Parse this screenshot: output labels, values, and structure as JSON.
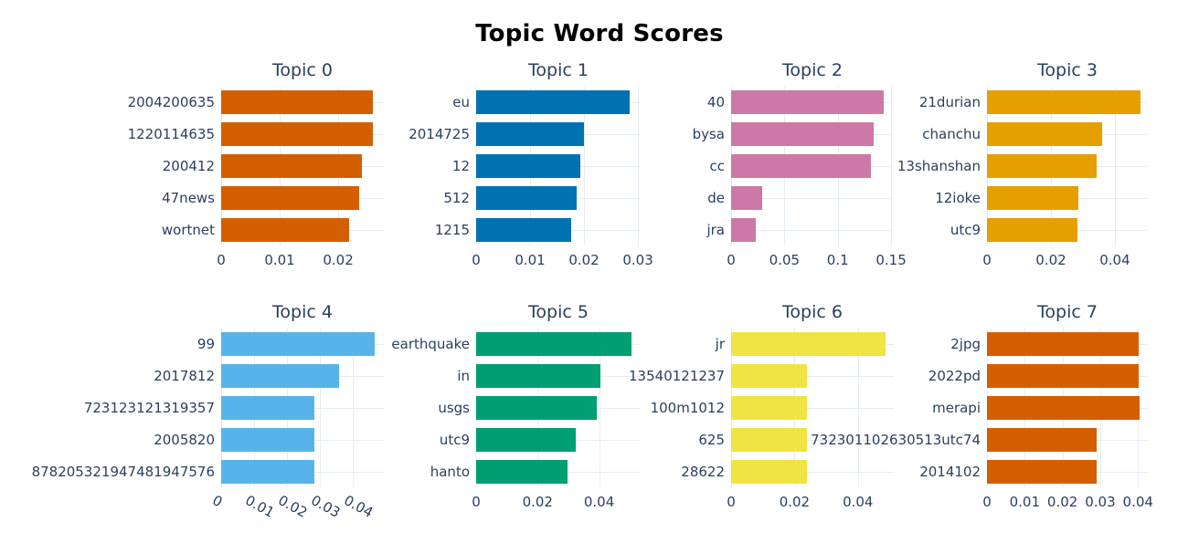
{
  "title": "Topic Word Scores",
  "colors": {
    "background": "#ffffff",
    "text": "#2a3f5f",
    "title_text": "#000000",
    "gridline": "#e6ecf5"
  },
  "chart_data": [
    {
      "type": "bar",
      "orientation": "horizontal",
      "title": "Topic 0",
      "bar_color": "#D55E00",
      "categories": [
        "2004200635",
        "1220114635",
        "200412",
        "47news",
        "wortnet"
      ],
      "values": [
        0.026,
        0.0259,
        0.024,
        0.0236,
        0.0219
      ],
      "xticks": [
        0,
        0.01,
        0.02
      ],
      "xlim": [
        0,
        0.0278
      ],
      "tick_angle": 0,
      "grid": true,
      "row": 0,
      "col": 0
    },
    {
      "type": "bar",
      "orientation": "horizontal",
      "title": "Topic 1",
      "bar_color": "#0072B2",
      "categories": [
        "eu",
        "2014725",
        "12",
        "512",
        "1215"
      ],
      "values": [
        0.0285,
        0.02,
        0.0194,
        0.0187,
        0.0177
      ],
      "xticks": [
        0,
        0.01,
        0.02,
        0.03
      ],
      "xlim": [
        0,
        0.0305
      ],
      "tick_angle": 0,
      "grid": true,
      "row": 0,
      "col": 1
    },
    {
      "type": "bar",
      "orientation": "horizontal",
      "title": "Topic 2",
      "bar_color": "#CC79A7",
      "categories": [
        "40",
        "bysa",
        "cc",
        "de",
        "jra"
      ],
      "values": [
        0.143,
        0.134,
        0.131,
        0.029,
        0.023
      ],
      "xticks": [
        0,
        0.05,
        0.1,
        0.15
      ],
      "xlim": [
        0,
        0.1525
      ],
      "tick_angle": 0,
      "grid": true,
      "row": 0,
      "col": 2
    },
    {
      "type": "bar",
      "orientation": "horizontal",
      "title": "Topic 3",
      "bar_color": "#E69F00",
      "categories": [
        "21durian",
        "chanchu",
        "13shanshan",
        "12ioke",
        "utc9"
      ],
      "values": [
        0.048,
        0.036,
        0.0343,
        0.0286,
        0.0282
      ],
      "xticks": [
        0,
        0.02,
        0.04
      ],
      "xlim": [
        0,
        0.0503
      ],
      "tick_angle": 0,
      "grid": true,
      "row": 0,
      "col": 3
    },
    {
      "type": "bar",
      "orientation": "horizontal",
      "title": "Topic 4",
      "bar_color": "#56B4E9",
      "categories": [
        "99",
        "2017812",
        "723123121319357",
        "2005820",
        "878205321947481947576"
      ],
      "values": [
        0.0468,
        0.036,
        0.0285,
        0.0284,
        0.0284
      ],
      "xticks": [
        0,
        0.01,
        0.02,
        0.03,
        0.04
      ],
      "xlim": [
        0,
        0.0496
      ],
      "tick_angle": 29,
      "grid": true,
      "row": 1,
      "col": 0
    },
    {
      "type": "bar",
      "orientation": "horizontal",
      "title": "Topic 5",
      "bar_color": "#009E73",
      "categories": [
        "earthquake",
        "in",
        "usgs",
        "utc9",
        "hanto"
      ],
      "values": [
        0.0505,
        0.0403,
        0.0392,
        0.0325,
        0.0298
      ],
      "xticks": [
        0,
        0.02,
        0.04
      ],
      "xlim": [
        0,
        0.0535
      ],
      "tick_angle": 0,
      "grid": true,
      "row": 1,
      "col": 1
    },
    {
      "type": "bar",
      "orientation": "horizontal",
      "title": "Topic 6",
      "bar_color": "#F0E442",
      "categories": [
        "jr",
        "13540121237",
        "100m1012",
        "625",
        "28622"
      ],
      "values": [
        0.0487,
        0.0238,
        0.0238,
        0.0238,
        0.0238
      ],
      "xticks": [
        0,
        0.02,
        0.04
      ],
      "xlim": [
        0,
        0.0513
      ],
      "tick_angle": 0,
      "grid": true,
      "row": 1,
      "col": 2
    },
    {
      "type": "bar",
      "orientation": "horizontal",
      "title": "Topic 7",
      "bar_color": "#D55E00",
      "categories": [
        "2jpg",
        "2022pd",
        "merapi",
        "732301102630513utc74",
        "2014102"
      ],
      "values": [
        0.0402,
        0.0402,
        0.0405,
        0.0291,
        0.0291
      ],
      "xticks": [
        0,
        0.01,
        0.02,
        0.03,
        0.04
      ],
      "xlim": [
        0,
        0.0426
      ],
      "tick_angle": 0,
      "grid": true,
      "row": 1,
      "col": 3
    }
  ]
}
